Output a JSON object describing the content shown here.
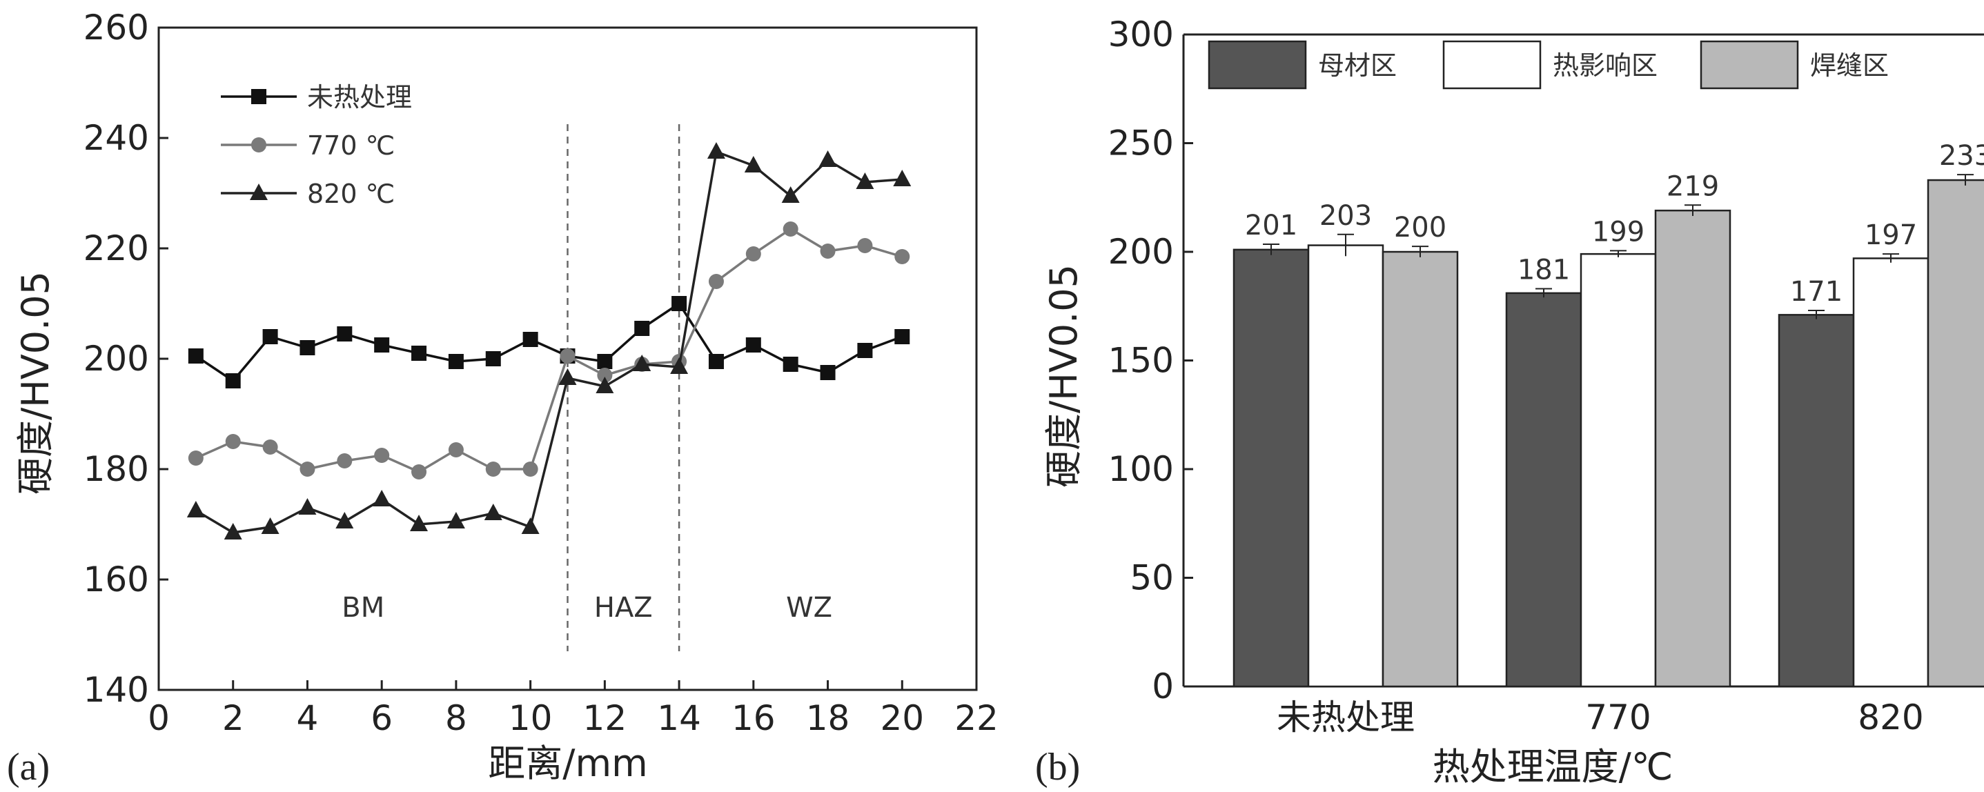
{
  "chart_data": [
    {
      "panel_label": "(a)",
      "type": "line",
      "xlabel": "距离/mm",
      "ylabel": "硬度/HV0.05",
      "xlim": [
        0,
        22
      ],
      "ylim": [
        140,
        260
      ],
      "xticks": [
        "0",
        "2",
        "4",
        "6",
        "8",
        "10",
        "12",
        "14",
        "16",
        "18",
        "20",
        "22"
      ],
      "yticks": [
        "140",
        "160",
        "180",
        "200",
        "220",
        "240",
        "260"
      ],
      "grid": false,
      "legend_position": "top-left",
      "boundaries": [
        11,
        14
      ],
      "regions": [
        {
          "label": "BM",
          "x": 5.5
        },
        {
          "label": "HAZ",
          "x": 12.5
        },
        {
          "label": "WZ",
          "x": 17.5
        }
      ],
      "x": [
        1,
        2,
        3,
        4,
        5,
        6,
        7,
        8,
        9,
        10,
        11,
        12,
        13,
        14,
        15,
        16,
        17,
        18,
        19,
        20
      ],
      "series": [
        {
          "name": "未热处理",
          "marker": "square",
          "color": "#111111",
          "values": [
            200.5,
            196,
            204,
            202,
            204.5,
            202.5,
            201,
            199.5,
            200,
            203.5,
            200.5,
            199.5,
            205.5,
            210,
            199.5,
            202.5,
            199,
            197.5,
            201.5,
            204
          ]
        },
        {
          "name": "770 ℃",
          "marker": "circle",
          "color": "#7a7a7a",
          "values": [
            182,
            185,
            184,
            180,
            181.5,
            182.5,
            179.5,
            183.5,
            180,
            180,
            200.5,
            197,
            199,
            199.5,
            214,
            219,
            223.5,
            219.5,
            220.5,
            218.5
          ]
        },
        {
          "name": "820 ℃",
          "marker": "triangle",
          "color": "#222222",
          "values": [
            172.5,
            168.5,
            169.5,
            173,
            170.5,
            174.5,
            170,
            170.5,
            172,
            169.5,
            196.5,
            195,
            199,
            198.5,
            237.5,
            235,
            229.5,
            236,
            232,
            232.5
          ]
        }
      ]
    },
    {
      "panel_label": "(b)",
      "type": "bar",
      "xlabel": "热处理温度/℃",
      "ylabel": "硬度/HV0.05",
      "ylim": [
        0,
        300
      ],
      "yticks": [
        "0",
        "50",
        "100",
        "150",
        "200",
        "250",
        "300"
      ],
      "categories": [
        "未热处理",
        "770",
        "820"
      ],
      "legend_position": "top",
      "series": [
        {
          "name": "母材区",
          "color": "#555555",
          "values": [
            201,
            181,
            171
          ],
          "labels": [
            "201",
            "181",
            "171"
          ],
          "errors": [
            2.5,
            2,
            2
          ]
        },
        {
          "name": "热影响区",
          "color": "#ffffff",
          "values": [
            203,
            199,
            197
          ],
          "labels": [
            "203",
            "199",
            "197"
          ],
          "errors": [
            5,
            1.5,
            2
          ]
        },
        {
          "name": "焊缝区",
          "color": "#b8b8b8",
          "values": [
            200,
            219,
            233
          ],
          "labels": [
            "200",
            "219",
            "233"
          ],
          "errors": [
            2.5,
            2.5,
            2.5
          ]
        }
      ]
    }
  ]
}
